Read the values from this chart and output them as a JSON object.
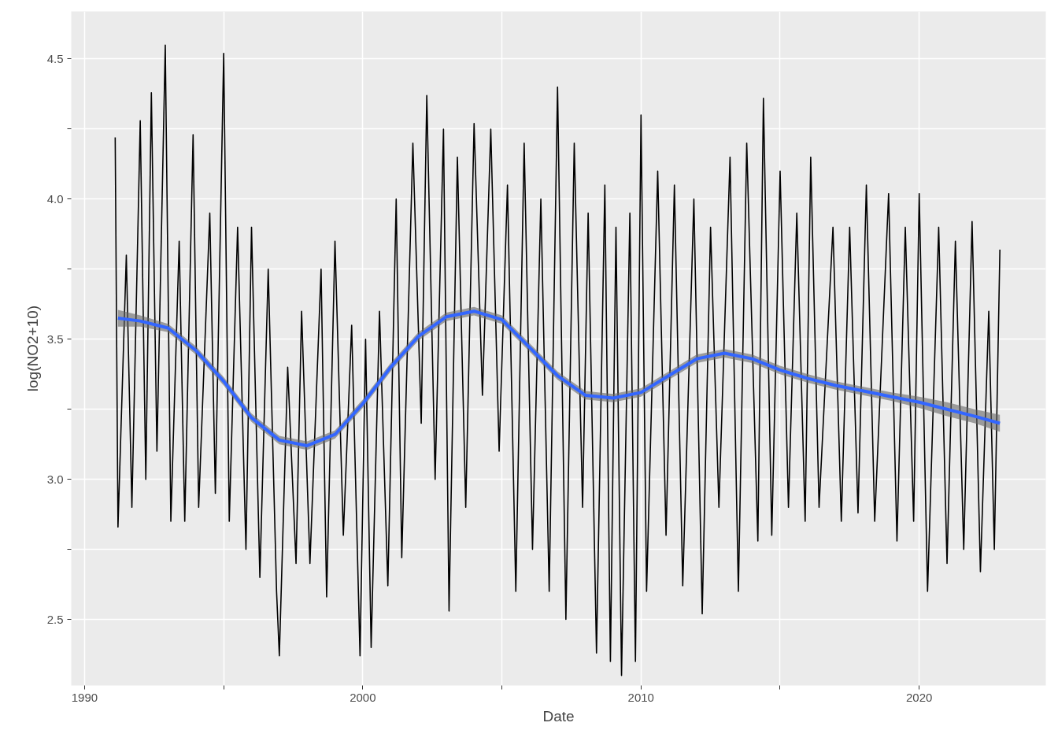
{
  "chart_data": {
    "type": "line",
    "xlabel": "Date",
    "ylabel": "log(NO2+10)",
    "xlim": [
      1989.52,
      2024.55
    ],
    "ylim": [
      2.264,
      4.67
    ],
    "xticks": [
      1990,
      {
        "value": 1995,
        "label": null
      },
      2000,
      {
        "value": 2005,
        "label": null
      },
      2010,
      {
        "value": 2015,
        "label": null
      },
      2020
    ],
    "yticks": [
      2.5,
      {
        "value": 2.75,
        "label": null
      },
      "3.0",
      {
        "value": 3.25,
        "label": null
      },
      3.5,
      {
        "value": 3.75,
        "label": null
      },
      "4.0",
      {
        "value": 4.25,
        "label": null
      },
      4.5
    ],
    "grid": true,
    "marker": "none",
    "line_style": "solid",
    "series": [
      {
        "color": "#000000",
        "x": [
          1991.1,
          1991.2,
          1991.5,
          1991.7,
          1992.0,
          1992.2,
          1992.4,
          1992.6,
          1992.9,
          1993.1,
          1993.4,
          1993.6,
          1993.9,
          1994.1,
          1994.5,
          1994.7,
          1995.0,
          1995.2,
          1995.5,
          1995.8,
          1996.0,
          1996.3,
          1996.6,
          1996.9,
          1997.0,
          1997.3,
          1997.6,
          1997.8,
          1998.1,
          1998.5,
          1998.7,
          1999.0,
          1999.3,
          1999.6,
          1999.9,
          2000.1,
          2000.3,
          2000.6,
          2000.9,
          2001.2,
          2001.4,
          2001.8,
          2002.1,
          2002.3,
          2002.6,
          2002.9,
          2003.1,
          2003.4,
          2003.7,
          2004.0,
          2004.3,
          2004.6,
          2004.9,
          2005.2,
          2005.5,
          2005.8,
          2006.1,
          2006.4,
          2006.7,
          2007.0,
          2007.3,
          2007.6,
          2007.9,
          2008.1,
          2008.4,
          2008.7,
          2008.9,
          2009.1,
          2009.3,
          2009.6,
          2009.8,
          2010.0,
          2010.2,
          2010.6,
          2010.9,
          2011.2,
          2011.5,
          2011.9,
          2012.2,
          2012.5,
          2012.8,
          2013.2,
          2013.5,
          2013.8,
          2014.2,
          2014.4,
          2014.7,
          2015.0,
          2015.3,
          2015.6,
          2015.9,
          2016.1,
          2016.4,
          2016.9,
          2017.2,
          2017.5,
          2017.8,
          2018.1,
          2018.4,
          2018.9,
          2019.2,
          2019.5,
          2019.8,
          2020.0,
          2020.3,
          2020.7,
          2021.0,
          2021.3,
          2021.6,
          2021.9,
          2022.2,
          2022.5,
          2022.7,
          2022.9
        ],
        "values": [
          4.22,
          2.83,
          3.8,
          2.9,
          4.28,
          3.0,
          4.38,
          3.1,
          4.55,
          2.85,
          3.85,
          2.85,
          4.23,
          2.9,
          3.95,
          2.95,
          4.52,
          2.85,
          3.9,
          2.75,
          3.9,
          2.65,
          3.75,
          2.6,
          2.37,
          3.4,
          2.7,
          3.6,
          2.7,
          3.75,
          2.58,
          3.85,
          2.8,
          3.55,
          2.37,
          3.5,
          2.4,
          3.6,
          2.62,
          4.0,
          2.72,
          4.2,
          3.2,
          4.37,
          3.0,
          4.25,
          2.53,
          4.15,
          2.9,
          4.27,
          3.3,
          4.25,
          3.1,
          4.05,
          2.6,
          4.2,
          2.75,
          4.0,
          2.6,
          4.4,
          2.5,
          4.2,
          2.9,
          3.95,
          2.38,
          4.05,
          2.35,
          3.9,
          2.3,
          3.95,
          2.35,
          4.3,
          2.6,
          4.1,
          2.8,
          4.05,
          2.62,
          4.0,
          2.52,
          3.9,
          2.9,
          4.15,
          2.6,
          4.2,
          2.78,
          4.36,
          2.8,
          4.1,
          2.9,
          3.95,
          2.85,
          4.15,
          2.9,
          3.9,
          2.85,
          3.9,
          2.88,
          4.05,
          2.85,
          4.02,
          2.78,
          3.9,
          2.85,
          4.02,
          2.6,
          3.9,
          2.7,
          3.85,
          2.75,
          3.92,
          2.67,
          3.6,
          2.75,
          3.82
        ]
      },
      {
        "color": "#3366ff",
        "x": [
          1991.2,
          1992,
          1993,
          1994,
          1995,
          1996,
          1997,
          1998,
          1999,
          2000,
          2001,
          2002,
          2003,
          2004,
          2005,
          2006,
          2007,
          2008,
          2009,
          2010,
          2011,
          2012,
          2013,
          2014,
          2015,
          2016,
          2017,
          2018,
          2019,
          2020,
          2021,
          2022,
          2022.9
        ],
        "values": [
          3.575,
          3.565,
          3.54,
          3.46,
          3.35,
          3.22,
          3.14,
          3.12,
          3.16,
          3.27,
          3.4,
          3.51,
          3.58,
          3.6,
          3.57,
          3.47,
          3.37,
          3.3,
          3.29,
          3.31,
          3.37,
          3.43,
          3.45,
          3.43,
          3.39,
          3.36,
          3.335,
          3.315,
          3.295,
          3.275,
          3.25,
          3.225,
          3.2
        ],
        "lower": [
          3.545,
          3.545,
          3.525,
          3.445,
          3.335,
          3.205,
          3.125,
          3.105,
          3.145,
          3.255,
          3.385,
          3.495,
          3.565,
          3.585,
          3.555,
          3.455,
          3.355,
          3.285,
          3.275,
          3.295,
          3.355,
          3.415,
          3.435,
          3.415,
          3.375,
          3.345,
          3.32,
          3.3,
          3.28,
          3.255,
          3.225,
          3.2,
          3.17
        ],
        "upper": [
          3.605,
          3.585,
          3.555,
          3.475,
          3.365,
          3.235,
          3.155,
          3.135,
          3.175,
          3.285,
          3.415,
          3.525,
          3.595,
          3.615,
          3.585,
          3.485,
          3.385,
          3.315,
          3.305,
          3.325,
          3.385,
          3.445,
          3.465,
          3.445,
          3.405,
          3.375,
          3.35,
          3.33,
          3.31,
          3.295,
          3.275,
          3.25,
          3.23
        ]
      }
    ]
  }
}
